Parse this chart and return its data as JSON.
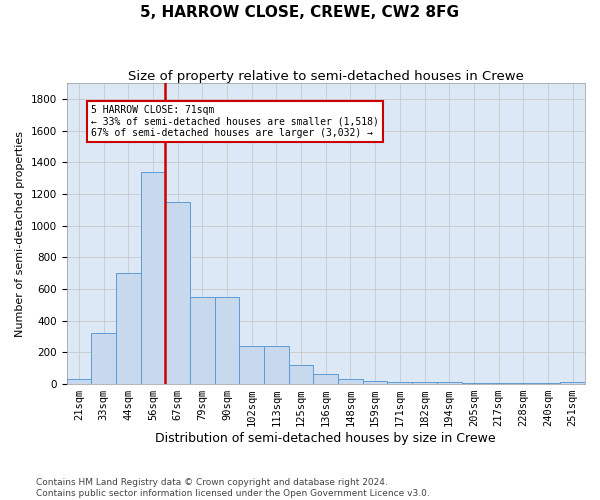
{
  "title": "5, HARROW CLOSE, CREWE, CW2 8FG",
  "subtitle": "Size of property relative to semi-detached houses in Crewe",
  "xlabel": "Distribution of semi-detached houses by size in Crewe",
  "ylabel": "Number of semi-detached properties",
  "categories": [
    "21sqm",
    "33sqm",
    "44sqm",
    "56sqm",
    "67sqm",
    "79sqm",
    "90sqm",
    "102sqm",
    "113sqm",
    "125sqm",
    "136sqm",
    "148sqm",
    "159sqm",
    "171sqm",
    "182sqm",
    "194sqm",
    "205sqm",
    "217sqm",
    "228sqm",
    "240sqm",
    "251sqm"
  ],
  "values": [
    30,
    320,
    700,
    1340,
    1150,
    550,
    550,
    240,
    240,
    120,
    65,
    30,
    20,
    15,
    10,
    10,
    5,
    5,
    5,
    5,
    10
  ],
  "bar_color": "#c8d9ee",
  "bar_edge_color": "#5b9bd5",
  "bar_edge_width": 0.7,
  "vline_color": "#cc0000",
  "annotation_text": "5 HARROW CLOSE: 71sqm\n← 33% of semi-detached houses are smaller (1,518)\n67% of semi-detached houses are larger (3,032) →",
  "annotation_box_color": "white",
  "annotation_box_edge_color": "#cc0000",
  "ylim": [
    0,
    1900
  ],
  "yticks": [
    0,
    200,
    400,
    600,
    800,
    1000,
    1200,
    1400,
    1600,
    1800
  ],
  "grid_color": "#c8c8c8",
  "background_color": "#dce8f5",
  "footer": "Contains HM Land Registry data © Crown copyright and database right 2024.\nContains public sector information licensed under the Open Government Licence v3.0.",
  "title_fontsize": 11,
  "subtitle_fontsize": 9.5,
  "xlabel_fontsize": 9,
  "ylabel_fontsize": 8,
  "tick_fontsize": 7.5,
  "footer_fontsize": 6.5,
  "vline_bin_index": 4
}
